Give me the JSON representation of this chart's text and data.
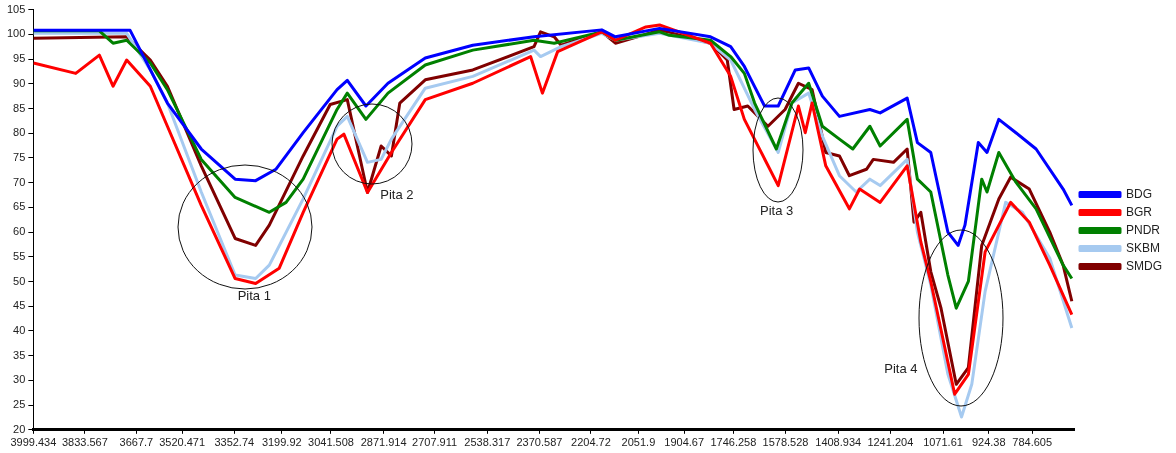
{
  "chart_data": {
    "type": "line",
    "xlim": [
      3999.434,
      650
    ],
    "ylim": [
      20,
      105
    ],
    "xticks": [
      3999.434,
      3833.567,
      3667.7,
      3520.471,
      3352.74,
      3199.92,
      3041.508,
      2871.914,
      2707.911,
      2538.317,
      2370.587,
      2204.72,
      2051.9,
      1904.67,
      1746.258,
      1578.528,
      1408.934,
      1241.204,
      1071.61,
      924.38,
      784.605
    ],
    "yticks": [
      20,
      25,
      30,
      35,
      40,
      45,
      50,
      55,
      60,
      65,
      70,
      75,
      80,
      85,
      90,
      95,
      100,
      105
    ],
    "grid": false,
    "legend": "right",
    "marker": "none",
    "line_style": "solid",
    "annotations": [
      "Pita 1",
      "Pita 2",
      "Pita 3",
      "Pita 4"
    ],
    "series": [
      {
        "name": "BDG",
        "color": "#0000ff",
        "x": [
          3999,
          3688,
          3568,
          3459,
          3350,
          3284,
          3219,
          3131,
          3022,
          2989,
          2929,
          2858,
          2738,
          2585,
          2388,
          2170,
          2126,
          1984,
          1820,
          1755,
          1711,
          1646,
          1602,
          1547,
          1504,
          1460,
          1405,
          1307,
          1274,
          1187,
          1154,
          1111,
          1056,
          1023,
          1001,
          958,
          930,
          892,
          837,
          772,
          685,
          657
        ],
        "values": [
          100.8,
          100.8,
          86.1,
          76.8,
          70.7,
          70.4,
          72.7,
          80.1,
          88.8,
          90.7,
          85.5,
          90.1,
          95.2,
          97.8,
          99.5,
          100.9,
          99.5,
          101.2,
          99.5,
          97.5,
          93.5,
          85.5,
          85.5,
          92.8,
          93.2,
          87.5,
          83.4,
          84.8,
          84.1,
          87.1,
          78.1,
          76.1,
          60,
          57.3,
          61.4,
          78.1,
          76.1,
          82.8,
          80.1,
          76.8,
          68.7,
          65.4
        ]
      },
      {
        "name": "BGR",
        "color": "#ff0000",
        "x": [
          3999,
          3863,
          3787,
          3743,
          3699,
          3623,
          3568,
          3459,
          3350,
          3284,
          3208,
          3131,
          3022,
          3000,
          2924,
          2847,
          2738,
          2585,
          2399,
          2361,
          2312,
          2170,
          2126,
          2028,
          1984,
          1820,
          1755,
          1711,
          1602,
          1537,
          1515,
          1493,
          1449,
          1373,
          1340,
          1274,
          1187,
          1143,
          1111,
          1034,
          990,
          936,
          854,
          794,
          728,
          657
        ],
        "values": [
          94.2,
          92.1,
          95.8,
          89.5,
          94.8,
          89.5,
          81.4,
          65.4,
          50.6,
          49.6,
          52.7,
          64,
          78.8,
          79.8,
          68,
          76.1,
          86.8,
          90.1,
          95.5,
          88.1,
          96.5,
          100.5,
          98.8,
          101.5,
          101.9,
          98.2,
          91.5,
          82.8,
          69.4,
          85.5,
          80.1,
          86.1,
          73.4,
          64.7,
          68.7,
          66,
          73.4,
          58,
          50,
          27.2,
          31.2,
          56,
          66,
          62,
          53.3,
          43.3
        ]
      },
      {
        "name": "PNDR",
        "color": "#008000",
        "x": [
          3999,
          3787,
          3743,
          3699,
          3623,
          3568,
          3459,
          3350,
          3240,
          3186,
          3131,
          3022,
          2989,
          2929,
          2858,
          2738,
          2585,
          2388,
          2323,
          2170,
          2126,
          1984,
          1952,
          1820,
          1755,
          1711,
          1678,
          1608,
          1558,
          1504,
          1460,
          1405,
          1362,
          1307,
          1274,
          1187,
          1154,
          1111,
          1056,
          1029,
          990,
          947,
          930,
          892,
          837,
          772,
          685,
          657
        ],
        "values": [
          100.7,
          100.7,
          98.2,
          98.8,
          94.2,
          88.8,
          74.7,
          67,
          64,
          66,
          70.7,
          84.8,
          88.1,
          82.8,
          88.1,
          93.8,
          96.8,
          98.8,
          98.2,
          100.5,
          98.8,
          100.5,
          99.8,
          98.8,
          95.5,
          92.1,
          86.1,
          76.8,
          86.1,
          90.1,
          81.4,
          78.8,
          76.8,
          81.4,
          77.4,
          82.8,
          70.7,
          68.1,
          51.3,
          44.6,
          50,
          70.7,
          68.1,
          76.1,
          70.1,
          64.7,
          53.3,
          50.6
        ]
      },
      {
        "name": "SKBM",
        "color": "#a6caf0",
        "x": [
          3999,
          3699,
          3623,
          3568,
          3459,
          3350,
          3284,
          3240,
          3131,
          3022,
          2989,
          2924,
          2880,
          2847,
          2738,
          2585,
          2388,
          2367,
          2301,
          2170,
          2126,
          1984,
          1820,
          1755,
          1678,
          1602,
          1558,
          1504,
          1460,
          1405,
          1351,
          1307,
          1274,
          1187,
          1154,
          1111,
          1056,
          1012,
          979,
          936,
          870,
          816,
          728,
          657
        ],
        "values": [
          100.2,
          100.2,
          92.8,
          86.1,
          68.1,
          51.3,
          50.6,
          53.3,
          66.7,
          81.4,
          83.4,
          74.1,
          74.7,
          78.8,
          89.1,
          91.5,
          96.8,
          95.5,
          97.5,
          100.2,
          98.8,
          100.2,
          98.2,
          94.8,
          84.8,
          76.1,
          86.1,
          88.1,
          79.4,
          71.4,
          68.1,
          70.7,
          69.4,
          74.7,
          60,
          49.3,
          31.3,
          22.6,
          29.2,
          48,
          66,
          64,
          54.7,
          40.6
        ]
      },
      {
        "name": "SMDG",
        "color": "#800000",
        "x": [
          3999,
          3699,
          3623,
          3568,
          3459,
          3350,
          3284,
          3240,
          3131,
          3044,
          2989,
          2924,
          2880,
          2847,
          2820,
          2738,
          2585,
          2388,
          2367,
          2323,
          2301,
          2170,
          2126,
          2039,
          1984,
          1820,
          1766,
          1744,
          1700,
          1635,
          1580,
          1537,
          1493,
          1449,
          1405,
          1373,
          1318,
          1296,
          1231,
          1187,
          1165,
          1143,
          1111,
          1078,
          1029,
          990,
          947,
          892,
          854,
          794,
          728,
          685,
          657
        ],
        "values": [
          99.2,
          99.5,
          94.8,
          89.5,
          73.4,
          58.7,
          57.3,
          61.4,
          75.4,
          85.8,
          86.8,
          68,
          77.4,
          75.4,
          86.1,
          90.8,
          92.8,
          97.5,
          100.5,
          99.5,
          97.8,
          100.5,
          98.2,
          99.8,
          100.9,
          98.2,
          94.8,
          84.8,
          85.5,
          81.4,
          84.8,
          90.1,
          88.8,
          76.1,
          75.4,
          71.4,
          72.7,
          74.7,
          74.1,
          76.8,
          62,
          64,
          52,
          44.6,
          29.2,
          32.6,
          57.3,
          66.7,
          71.1,
          68.7,
          60,
          53.3,
          46
        ]
      }
    ]
  }
}
